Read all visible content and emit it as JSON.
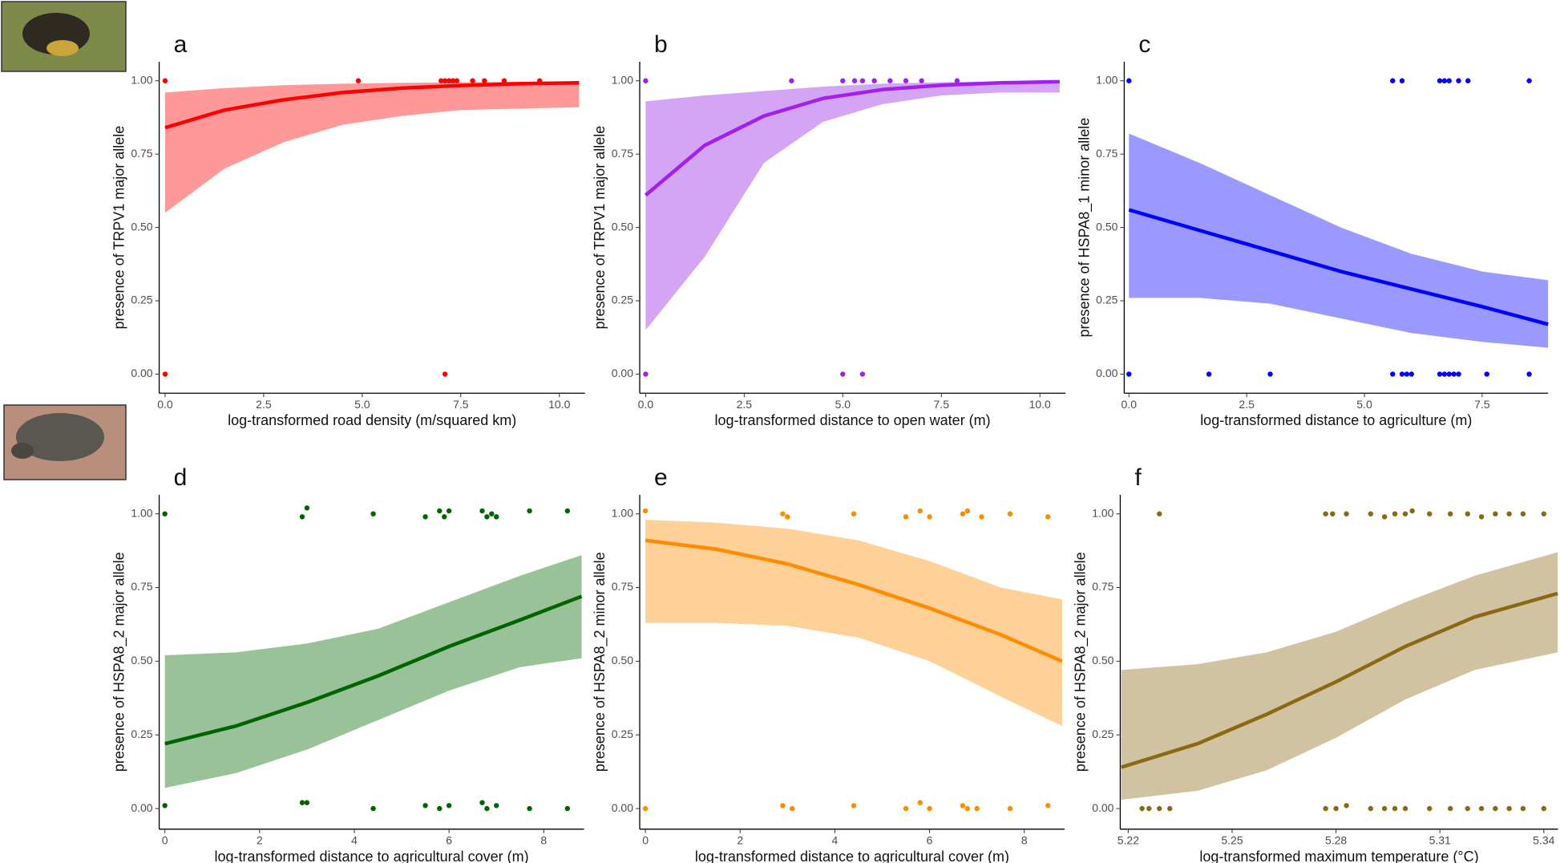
{
  "chart_data": [
    {
      "type": "scatter",
      "label": "a",
      "ylabel": "presence of TRPV1 major allele",
      "xlabel": "log-transformed road density (m/squared km)",
      "color": "#ff0000",
      "band_color": "#ff9999",
      "xlim": [
        -0.15,
        10.65
      ],
      "ylim": [
        -0.065,
        1.065
      ],
      "xticks": [
        {
          "value": 0,
          "label": "0.0"
        },
        2.5,
        {
          "value": 5,
          "label": "5.0"
        },
        7.5,
        {
          "value": 10,
          "label": "10.0"
        }
      ],
      "yticks": [
        {
          "value": 0,
          "label": "0.00"
        },
        0.25,
        {
          "value": 0.5,
          "label": "0.50"
        },
        0.75,
        {
          "value": 1,
          "label": "1.00"
        }
      ],
      "points": {
        "x": [
          0,
          4.9,
          7.0,
          7.1,
          7.2,
          7.3,
          7.4,
          7.8,
          8.1,
          8.6,
          9.5,
          0,
          7.1
        ],
        "y": [
          1,
          1,
          1,
          1,
          1,
          1,
          1,
          1,
          1,
          1,
          1,
          0,
          0
        ]
      },
      "fit": {
        "x": [
          0,
          1.5,
          3,
          4.5,
          6,
          7.5,
          9,
          10.5
        ],
        "y": [
          0.84,
          0.9,
          0.935,
          0.96,
          0.975,
          0.984,
          0.99,
          0.993
        ],
        "lower": [
          0.55,
          0.7,
          0.79,
          0.85,
          0.88,
          0.9,
          0.905,
          0.91
        ],
        "upper": [
          0.96,
          0.975,
          0.985,
          0.99,
          0.993,
          0.995,
          0.997,
          0.998
        ]
      }
    },
    {
      "type": "scatter",
      "label": "b",
      "ylabel": "presence of TRPV1 major allele",
      "xlabel": "log-transformed distance to open water (m)",
      "color": "#a020f0",
      "band_color": "#d4a5f5",
      "xlim": [
        -0.15,
        10.65
      ],
      "ylim": [
        -0.065,
        1.065
      ],
      "xticks": [
        {
          "value": 0,
          "label": "0.0"
        },
        2.5,
        {
          "value": 5,
          "label": "5.0"
        },
        7.5,
        {
          "value": 10,
          "label": "10.0"
        }
      ],
      "yticks": [
        {
          "value": 0,
          "label": "0.00"
        },
        0.25,
        {
          "value": 0.5,
          "label": "0.50"
        },
        0.75,
        {
          "value": 1,
          "label": "1.00"
        }
      ],
      "points": {
        "x": [
          0,
          3.7,
          5.0,
          5.3,
          5.5,
          5.8,
          6.2,
          6.6,
          7.0,
          7.9,
          0,
          5.0,
          5.5
        ],
        "y": [
          1,
          1,
          1,
          1,
          1,
          1,
          1,
          1,
          1,
          1,
          0,
          0,
          0
        ]
      },
      "fit": {
        "x": [
          0,
          1.5,
          3,
          4.5,
          6,
          7.5,
          9,
          10.5
        ],
        "y": [
          0.61,
          0.78,
          0.88,
          0.94,
          0.97,
          0.985,
          0.993,
          0.997
        ],
        "lower": [
          0.15,
          0.4,
          0.72,
          0.86,
          0.92,
          0.95,
          0.96,
          0.96
        ],
        "upper": [
          0.93,
          0.95,
          0.965,
          0.98,
          0.99,
          0.995,
          0.998,
          0.999
        ]
      }
    },
    {
      "type": "scatter",
      "label": "c",
      "ylabel": "presence of HSPA8_1 minor allele",
      "xlabel": "log-transformed distance to agriculture (m)",
      "color": "#0000ff",
      "band_color": "#9999ff",
      "xlim": [
        -0.1,
        8.9
      ],
      "ylim": [
        -0.065,
        1.065
      ],
      "xticks": [
        {
          "value": 0,
          "label": "0.0"
        },
        2.5,
        {
          "value": 5,
          "label": "5.0"
        },
        7.5
      ],
      "yticks": [
        {
          "value": 0,
          "label": "0.00"
        },
        0.25,
        {
          "value": 0.5,
          "label": "0.50"
        },
        0.75,
        {
          "value": 1,
          "label": "1.00"
        }
      ],
      "points": {
        "x": [
          0,
          5.6,
          5.8,
          6.6,
          6.7,
          6.8,
          7.0,
          7.2,
          8.5,
          0,
          1.7,
          3.0,
          5.6,
          5.8,
          5.9,
          6.0,
          6.6,
          6.7,
          6.8,
          6.9,
          7.0,
          7.6,
          8.5
        ],
        "y": [
          1,
          1,
          1,
          1,
          1,
          1,
          1,
          1,
          1,
          0,
          0,
          0,
          0,
          0,
          0,
          0,
          0,
          0,
          0,
          0,
          0,
          0,
          0
        ]
      },
      "fit": {
        "x": [
          0,
          1.5,
          3,
          4.5,
          6,
          7.5,
          8.9
        ],
        "y": [
          0.56,
          0.49,
          0.42,
          0.35,
          0.29,
          0.23,
          0.17
        ],
        "lower": [
          0.26,
          0.26,
          0.24,
          0.19,
          0.14,
          0.11,
          0.09
        ],
        "upper": [
          0.82,
          0.72,
          0.61,
          0.5,
          0.41,
          0.35,
          0.32
        ]
      }
    },
    {
      "type": "scatter",
      "label": "d",
      "ylabel": "presence of HSPA8_2 major allele",
      "xlabel": "log-transformed distance to agricultural cover (m)",
      "color": "#006400",
      "band_color": "#99c299",
      "xlim": [
        -0.12,
        8.85
      ],
      "ylim": [
        -0.07,
        1.065
      ],
      "xticks": [
        0,
        2,
        4,
        6,
        8
      ],
      "yticks": [
        {
          "value": 0,
          "label": "0.00"
        },
        0.25,
        {
          "value": 0.5,
          "label": "0.50"
        },
        0.75,
        {
          "value": 1,
          "label": "1.00"
        }
      ],
      "points": {
        "x": [
          0,
          2.9,
          3.0,
          4.4,
          5.5,
          5.8,
          5.9,
          6.0,
          6.7,
          6.8,
          6.9,
          7.0,
          7.7,
          8.5,
          0,
          2.9,
          3.0,
          4.4,
          5.5,
          5.8,
          6.0,
          6.7,
          6.8,
          7.0,
          7.7,
          8.5
        ],
        "y": [
          1.0,
          0.99,
          1.02,
          1.0,
          0.99,
          1.01,
          0.99,
          1.01,
          1.01,
          0.99,
          1.0,
          0.99,
          1.01,
          1.01,
          0.01,
          0.02,
          0.02,
          0.0,
          0.01,
          0.0,
          0.01,
          0.02,
          0.0,
          0.01,
          0.0,
          0.0
        ]
      },
      "fit": {
        "x": [
          0,
          1.5,
          3,
          4.5,
          6,
          7.5,
          8.8
        ],
        "y": [
          0.22,
          0.28,
          0.36,
          0.45,
          0.55,
          0.64,
          0.72
        ],
        "lower": [
          0.07,
          0.12,
          0.2,
          0.3,
          0.4,
          0.48,
          0.51
        ],
        "upper": [
          0.52,
          0.53,
          0.56,
          0.61,
          0.7,
          0.79,
          0.86
        ]
      }
    },
    {
      "type": "scatter",
      "label": "e",
      "ylabel": "presence of HSPA8_2 minor allele",
      "xlabel": "log-transformed distance to agricultural cover (m)",
      "color": "#ff8c00",
      "band_color": "#ffd199",
      "xlim": [
        -0.12,
        8.85
      ],
      "ylim": [
        -0.07,
        1.065
      ],
      "xticks": [
        0,
        2,
        4,
        6,
        8
      ],
      "yticks": [
        {
          "value": 0,
          "label": "0.00"
        },
        0.25,
        {
          "value": 0.5,
          "label": "0.50"
        },
        0.75,
        {
          "value": 1,
          "label": "1.00"
        }
      ],
      "points": {
        "x": [
          0,
          2.9,
          3.0,
          4.4,
          5.5,
          5.8,
          6.0,
          6.7,
          6.8,
          7.1,
          7.7,
          8.5,
          0,
          2.9,
          3.1,
          4.4,
          5.5,
          5.8,
          6.0,
          6.7,
          6.8,
          7.0,
          7.7,
          8.5
        ],
        "y": [
          1.01,
          1.0,
          0.99,
          1.0,
          0.99,
          1.01,
          0.99,
          1.0,
          1.01,
          0.99,
          1.0,
          0.99,
          0.0,
          0.01,
          0.0,
          0.01,
          0.0,
          0.02,
          0.0,
          0.01,
          0.0,
          0.0,
          0.0,
          0.01
        ]
      },
      "fit": {
        "x": [
          0,
          1.5,
          3,
          4.5,
          6,
          7.5,
          8.8
        ],
        "y": [
          0.91,
          0.88,
          0.83,
          0.76,
          0.68,
          0.59,
          0.5
        ],
        "lower": [
          0.63,
          0.63,
          0.62,
          0.58,
          0.5,
          0.38,
          0.28
        ],
        "upper": [
          0.98,
          0.97,
          0.95,
          0.91,
          0.84,
          0.75,
          0.71
        ]
      }
    },
    {
      "type": "scatter",
      "label": "f",
      "ylabel": "presence of HSPA8_2 major allele",
      "xlabel": "log-transformed maximum temperature (°C)",
      "color": "#8b6914",
      "band_color": "#d1c3a1",
      "xlim": [
        5.2177,
        5.3441
      ],
      "ylim": [
        -0.07,
        1.065
      ],
      "xticks": [
        5.22,
        5.25,
        5.28,
        5.31,
        5.34
      ],
      "yticks": [
        {
          "value": 0,
          "label": "0.00"
        },
        0.25,
        {
          "value": 0.5,
          "label": "0.50"
        },
        0.75,
        {
          "value": 1,
          "label": "1.00"
        }
      ],
      "points": {
        "x": [
          5.229,
          5.277,
          5.279,
          5.283,
          5.29,
          5.294,
          5.297,
          5.3,
          5.302,
          5.307,
          5.313,
          5.318,
          5.322,
          5.326,
          5.33,
          5.334,
          5.34,
          5.224,
          5.226,
          5.229,
          5.232,
          5.277,
          5.28,
          5.283,
          5.29,
          5.294,
          5.297,
          5.3,
          5.307,
          5.313,
          5.318,
          5.322,
          5.326,
          5.33,
          5.334,
          5.34
        ],
        "y": [
          1.0,
          1.0,
          1.0,
          1.0,
          1.0,
          0.99,
          1.0,
          1.0,
          1.01,
          1.0,
          1.0,
          1.0,
          0.99,
          1.0,
          1.0,
          1.0,
          1.0,
          0.0,
          0.0,
          0.0,
          0.0,
          0.0,
          0.0,
          0.01,
          0.0,
          0.0,
          0.0,
          0.0,
          0.0,
          0.0,
          0.0,
          0.0,
          0.0,
          0.0,
          0.0,
          0.0
        ]
      },
      "fit": {
        "x": [
          5.218,
          5.24,
          5.26,
          5.28,
          5.3,
          5.32,
          5.344
        ],
        "y": [
          0.14,
          0.22,
          0.32,
          0.43,
          0.55,
          0.65,
          0.73
        ],
        "lower": [
          0.03,
          0.06,
          0.13,
          0.24,
          0.37,
          0.47,
          0.53
        ],
        "upper": [
          0.47,
          0.49,
          0.53,
          0.6,
          0.7,
          0.79,
          0.87
        ]
      }
    }
  ]
}
